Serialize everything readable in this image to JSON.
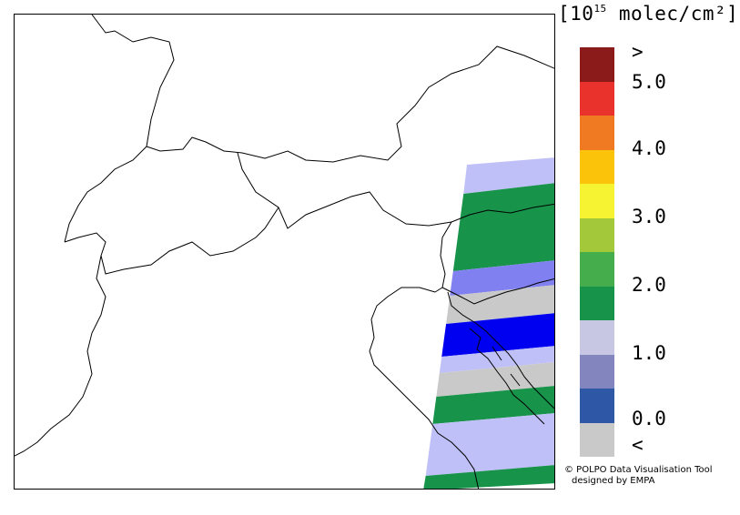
{
  "legend": {
    "title_main": "[10",
    "title_exp": "15",
    "title_rest": " molec/cm²]",
    "colors": [
      "#8b1a1a",
      "#e8322b",
      "#f07a21",
      "#fcc30b",
      "#f6f332",
      "#a3c93a",
      "#45ad4b",
      "#17934a",
      "#c7c6e3",
      "#8385bf",
      "#2e57a6",
      "#c9c9c9"
    ],
    "ticks": [
      ">",
      "5.0",
      "4.0",
      "3.0",
      "2.0",
      "1.0",
      "0.0",
      "<"
    ]
  },
  "swath": {
    "bands": [
      {
        "class": "1.0-1.5",
        "color": "#c0c0f8"
      },
      {
        "class": "1.5-2.0",
        "color": "#17934a"
      },
      {
        "class": "0.5-1.0",
        "color": "#8080f0"
      },
      {
        "class": "<",
        "color": "#c9c9c9"
      },
      {
        "class": "0.0-0.5",
        "color": "#0000f0"
      },
      {
        "class": "1.0-1.5",
        "color": "#c0c0f8"
      },
      {
        "class": "<",
        "color": "#c9c9c9"
      },
      {
        "class": "1.5-2.0",
        "color": "#17934a"
      },
      {
        "class": "1.0-1.5",
        "color": "#c0c0f8"
      },
      {
        "class": "1.5-2.0",
        "color": "#17934a"
      }
    ]
  },
  "credit": {
    "line1": "© POLPO Data Visualisation Tool",
    "line2": "designed by EMPA"
  }
}
